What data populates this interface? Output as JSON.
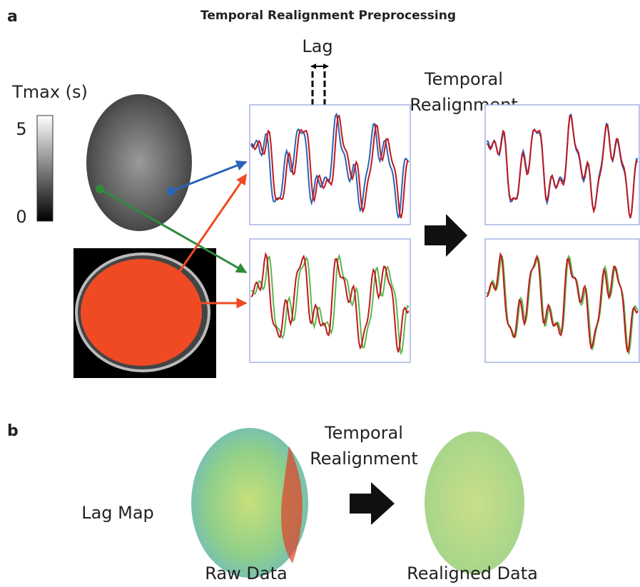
{
  "panel_a": {
    "letter": "a",
    "title": "Temporal Realignment Preprocessing",
    "lag_label": "Lag",
    "realignment_label": [
      "Temporal",
      "Realignment"
    ],
    "colorbar": {
      "label": "Tmax (s)",
      "ticks": [
        5,
        0
      ]
    }
  },
  "panel_b": {
    "letter": "b",
    "realignment_label": [
      "Temporal",
      "Realignment"
    ],
    "row_label": "Lag Map",
    "images": [
      "Raw Data",
      "Realigned Data"
    ]
  }
}
